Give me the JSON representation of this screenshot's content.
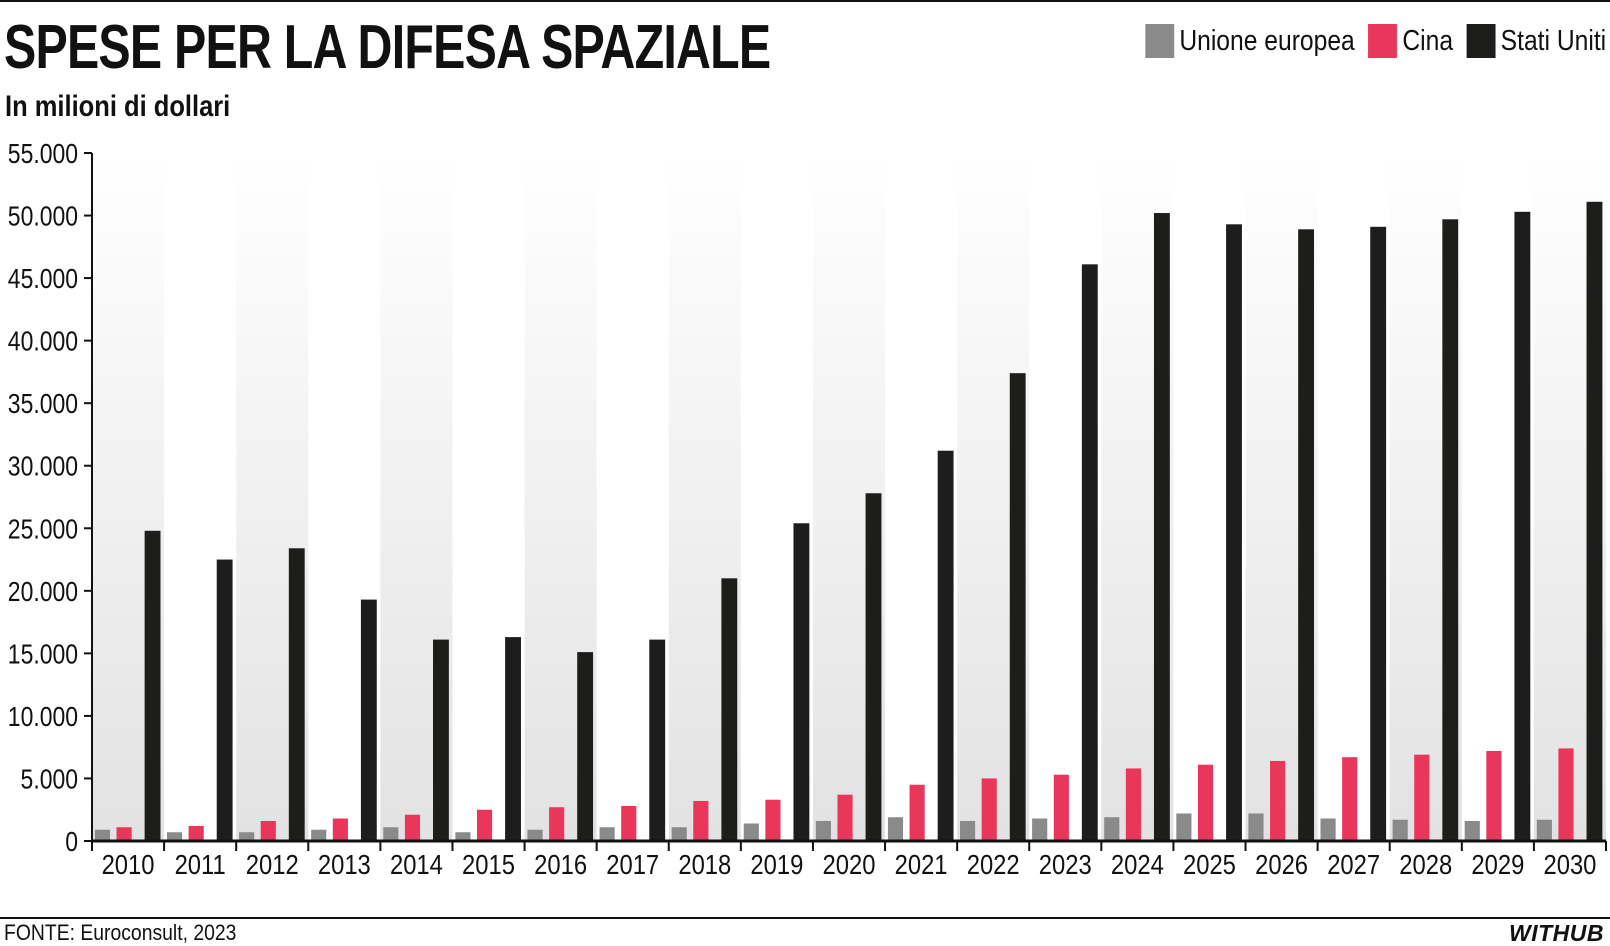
{
  "header": {
    "title": "SPESE PER LA DIFESA SPAZIALE",
    "subtitle": "In milioni di dollari"
  },
  "footer": {
    "source": "FONTE: Euroconsult, 2023",
    "brand": "WITHUB"
  },
  "colors": {
    "eu": "#8a8a8a",
    "china": "#e8375a",
    "usa": "#1d1d1b",
    "axis": "#111111"
  },
  "chart_data": {
    "type": "bar",
    "title": "SPESE PER LA DIFESA SPAZIALE",
    "subtitle": "In milioni di dollari",
    "xlabel": "",
    "ylabel": "",
    "ylim": [
      0,
      55000
    ],
    "yticks": [
      0,
      5000,
      10000,
      15000,
      20000,
      25000,
      30000,
      35000,
      40000,
      45000,
      50000,
      55000
    ],
    "ytick_labels": [
      "0",
      "5.000",
      "10.000",
      "15.000",
      "20.000",
      "25.000",
      "30.000",
      "35.000",
      "40.000",
      "45.000",
      "50.000",
      "55.000"
    ],
    "legend_position": "top-right",
    "grid": false,
    "categories": [
      "2010",
      "2011",
      "2012",
      "2013",
      "2014",
      "2015",
      "2016",
      "2017",
      "2018",
      "2019",
      "2020",
      "2021",
      "2022",
      "2023",
      "2024",
      "2025",
      "2026",
      "2027",
      "2028",
      "2029",
      "2030"
    ],
    "series": [
      {
        "name": "Unione europea",
        "color": "#8a8a8a",
        "values": [
          900,
          700,
          700,
          900,
          1100,
          700,
          900,
          1100,
          1100,
          1400,
          1600,
          1900,
          1600,
          1800,
          1900,
          2200,
          2200,
          1800,
          1700,
          1600,
          1700
        ]
      },
      {
        "name": "Cina",
        "color": "#e8375a",
        "values": [
          1100,
          1200,
          1600,
          1800,
          2100,
          2500,
          2700,
          2800,
          3200,
          3300,
          3700,
          4500,
          5000,
          5300,
          5800,
          6100,
          6400,
          6700,
          6900,
          7200,
          7400
        ]
      },
      {
        "name": "Stati Uniti",
        "color": "#1d1d1b",
        "values": [
          24800,
          22500,
          23400,
          19300,
          16100,
          16300,
          15100,
          16100,
          21000,
          25400,
          27800,
          31200,
          37400,
          46100,
          50200,
          49300,
          48900,
          49100,
          49700,
          50300,
          51100
        ]
      }
    ]
  }
}
